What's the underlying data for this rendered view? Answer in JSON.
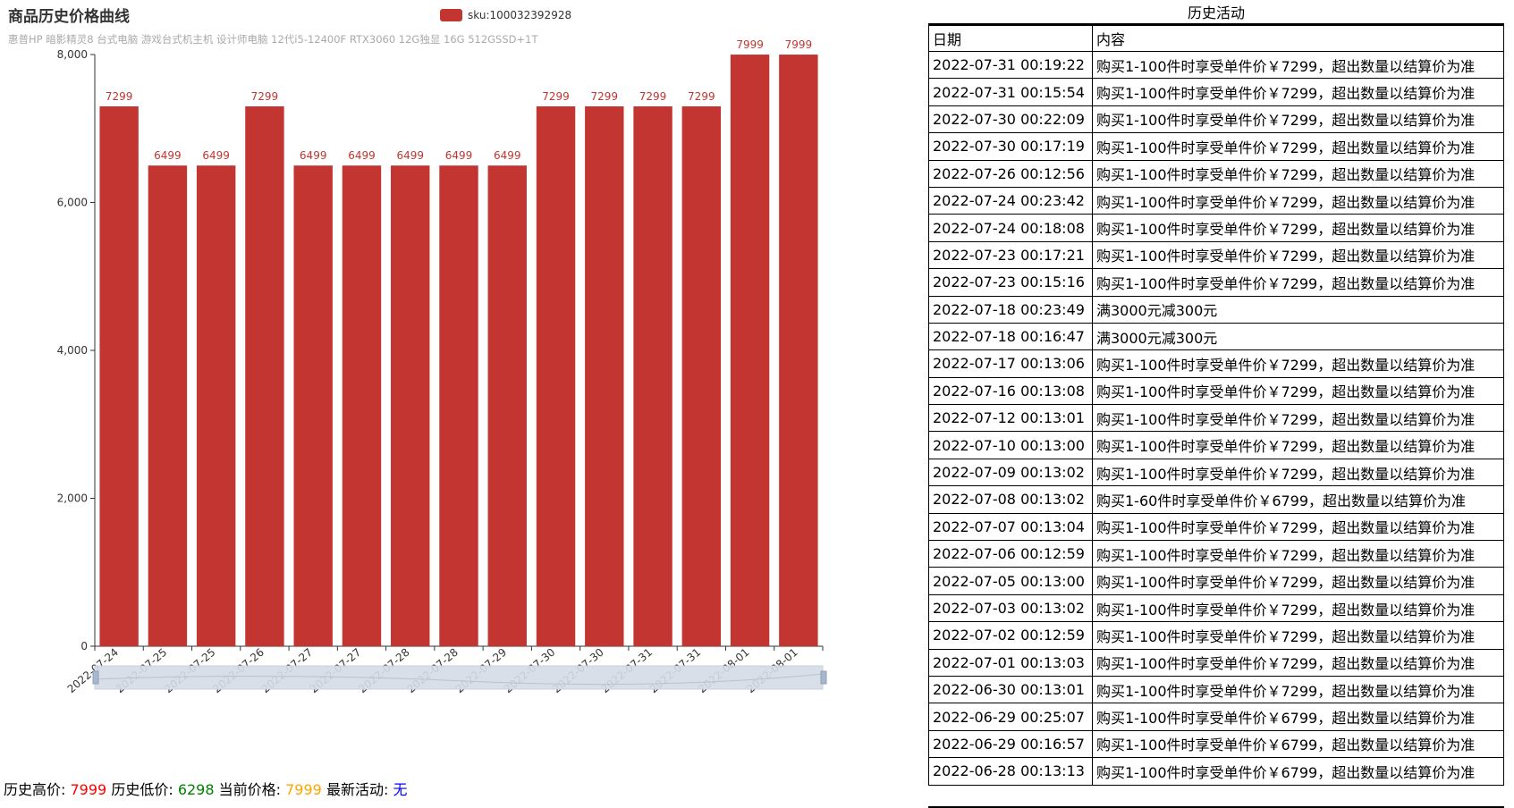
{
  "chart": {
    "title": "商品历史价格曲线",
    "subtitle": "惠普HP 暗影精灵8 台式电脑 游戏台式机主机 设计师电脑 12代i5-12400F RTX3060 12G独显 16G 512GSSD+1T",
    "legend_label": "sku:100032392928",
    "bar_color": "#c23531"
  },
  "chart_data": {
    "type": "bar",
    "title": "商品历史价格曲线",
    "subtitle": "惠普HP 暗影精灵8 台式电脑 游戏台式机主机 设计师电脑 12代i5-12400F RTX3060 12G独显 16G 512GSSD+1T",
    "categories": [
      "2022-07-24",
      "2022-07-25",
      "2022-07-25",
      "2022-07-26",
      "2022-07-27",
      "2022-07-27",
      "2022-07-28",
      "2022-07-28",
      "2022-07-29",
      "2022-07-30",
      "2022-07-30",
      "2022-07-31",
      "2022-07-31",
      "2022-08-01",
      "2022-08-01"
    ],
    "series": [
      {
        "name": "sku:100032392928",
        "values": [
          7299,
          6499,
          6499,
          7299,
          6499,
          6499,
          6499,
          6499,
          6499,
          7299,
          7299,
          7299,
          7299,
          7999,
          7999
        ]
      }
    ],
    "ylim": [
      0,
      8000
    ],
    "yticks": [
      0,
      2000,
      4000,
      6000,
      8000
    ],
    "ytick_labels": [
      "0",
      "2,000",
      "4,000",
      "6,000",
      "8,000"
    ],
    "legend_position": "top-center",
    "grid": false
  },
  "stats": {
    "high_label": "历史高价:",
    "high_value": "7999",
    "low_label": "历史低价:",
    "low_value": "6298",
    "current_label": "当前价格:",
    "current_value": "7999",
    "activity_label": "最新活动:",
    "activity_value": "无"
  },
  "history": {
    "title": "历史活动",
    "headers": [
      "日期",
      "内容"
    ],
    "rows": [
      [
        "2022-07-31 00:19:22",
        "购买1-100件时享受单件价￥7299，超出数量以结算价为准"
      ],
      [
        "2022-07-31 00:15:54",
        "购买1-100件时享受单件价￥7299，超出数量以结算价为准"
      ],
      [
        "2022-07-30 00:22:09",
        "购买1-100件时享受单件价￥7299，超出数量以结算价为准"
      ],
      [
        "2022-07-30 00:17:19",
        "购买1-100件时享受单件价￥7299，超出数量以结算价为准"
      ],
      [
        "2022-07-26 00:12:56",
        "购买1-100件时享受单件价￥7299，超出数量以结算价为准"
      ],
      [
        "2022-07-24 00:23:42",
        "购买1-100件时享受单件价￥7299，超出数量以结算价为准"
      ],
      [
        "2022-07-24 00:18:08",
        "购买1-100件时享受单件价￥7299，超出数量以结算价为准"
      ],
      [
        "2022-07-23 00:17:21",
        "购买1-100件时享受单件价￥7299，超出数量以结算价为准"
      ],
      [
        "2022-07-23 00:15:16",
        "购买1-100件时享受单件价￥7299，超出数量以结算价为准"
      ],
      [
        "2022-07-18 00:23:49",
        "满3000元减300元"
      ],
      [
        "2022-07-18 00:16:47",
        "满3000元减300元"
      ],
      [
        "2022-07-17 00:13:06",
        "购买1-100件时享受单件价￥7299，超出数量以结算价为准"
      ],
      [
        "2022-07-16 00:13:08",
        "购买1-100件时享受单件价￥7299，超出数量以结算价为准"
      ],
      [
        "2022-07-12 00:13:01",
        "购买1-100件时享受单件价￥7299，超出数量以结算价为准"
      ],
      [
        "2022-07-10 00:13:00",
        "购买1-100件时享受单件价￥7299，超出数量以结算价为准"
      ],
      [
        "2022-07-09 00:13:02",
        "购买1-100件时享受单件价￥7299，超出数量以结算价为准"
      ],
      [
        "2022-07-08 00:13:02",
        "购买1-60件时享受单件价￥6799，超出数量以结算价为准"
      ],
      [
        "2022-07-07 00:13:04",
        "购买1-100件时享受单件价￥7299，超出数量以结算价为准"
      ],
      [
        "2022-07-06 00:12:59",
        "购买1-100件时享受单件价￥7299，超出数量以结算价为准"
      ],
      [
        "2022-07-05 00:13:00",
        "购买1-100件时享受单件价￥7299，超出数量以结算价为准"
      ],
      [
        "2022-07-03 00:13:02",
        "购买1-100件时享受单件价￥7299，超出数量以结算价为准"
      ],
      [
        "2022-07-02 00:12:59",
        "购买1-100件时享受单件价￥7299，超出数量以结算价为准"
      ],
      [
        "2022-07-01 00:13:03",
        "购买1-100件时享受单件价￥7299，超出数量以结算价为准"
      ],
      [
        "2022-06-30 00:13:01",
        "购买1-100件时享受单件价￥7299，超出数量以结算价为准"
      ],
      [
        "2022-06-29 00:25:07",
        "购买1-100件时享受单件价￥6799，超出数量以结算价为准"
      ],
      [
        "2022-06-29 00:16:57",
        "购买1-100件时享受单件价￥6799，超出数量以结算价为准"
      ],
      [
        "2022-06-28 00:13:13",
        "购买1-100件时享受单件价￥6799，超出数量以结算价为准"
      ]
    ]
  }
}
